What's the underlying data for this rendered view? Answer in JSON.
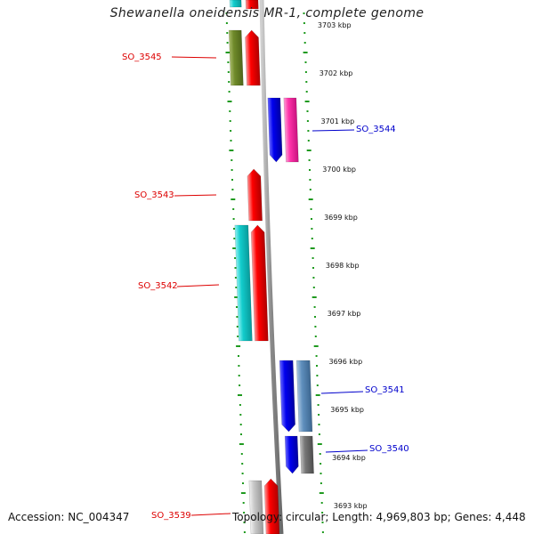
{
  "title": "Shewanella oneidensis MR-1, complete genome",
  "footer": {
    "accession": "Accession: NC_004347",
    "summary": "Topology: circular; Length: 4,969,803 bp; Genes: 4,448"
  },
  "colors": {
    "backbone": "#8a8a8a",
    "ruler_dots": "#1f9a1f",
    "label_reverse": "#dd0000",
    "label_forward": "#0000cc"
  },
  "ticks": [
    {
      "label": "3703 kbp",
      "kbp": 3703
    },
    {
      "label": "3702 kbp",
      "kbp": 3702
    },
    {
      "label": "3701 kbp",
      "kbp": 3701
    },
    {
      "label": "3700 kbp",
      "kbp": 3700
    },
    {
      "label": "3699 kbp",
      "kbp": 3699
    },
    {
      "label": "3698 kbp",
      "kbp": 3698
    },
    {
      "label": "3697 kbp",
      "kbp": 3697
    },
    {
      "label": "3696 kbp",
      "kbp": 3696
    },
    {
      "label": "3695 kbp",
      "kbp": 3695
    },
    {
      "label": "3694 kbp",
      "kbp": 3694
    },
    {
      "label": "3693 kbp",
      "kbp": 3693
    }
  ],
  "genes": [
    {
      "label": "SO_3545",
      "strand": "reverse"
    },
    {
      "label": "SO_3544",
      "strand": "forward"
    },
    {
      "label": "SO_3543",
      "strand": "reverse"
    },
    {
      "label": "SO_3542",
      "strand": "reverse"
    },
    {
      "label": "SO_3541",
      "strand": "forward"
    },
    {
      "label": "SO_3540",
      "strand": "forward"
    },
    {
      "label": "SO_3539",
      "strand": "reverse"
    }
  ]
}
